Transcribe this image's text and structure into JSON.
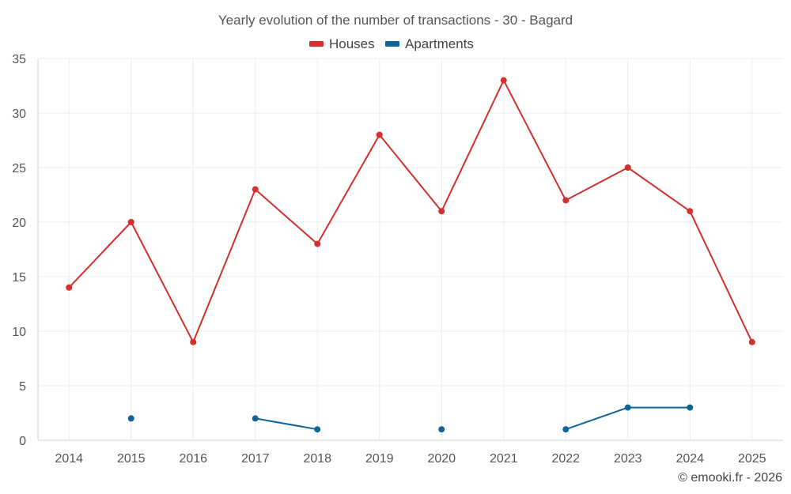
{
  "chart_data": {
    "type": "line",
    "title": "Yearly evolution of the number of transactions - 30 - Bagard",
    "categories": [
      "2014",
      "2015",
      "2016",
      "2017",
      "2018",
      "2019",
      "2020",
      "2021",
      "2022",
      "2023",
      "2024",
      "2025"
    ],
    "series": [
      {
        "name": "Houses",
        "color": "#d32f2f",
        "values": [
          14,
          20,
          9,
          23,
          18,
          28,
          21,
          33,
          22,
          25,
          21,
          9
        ]
      },
      {
        "name": "Apartments",
        "color": "#0e6596",
        "values": [
          null,
          2,
          null,
          2,
          1,
          null,
          1,
          null,
          1,
          3,
          3,
          null
        ]
      }
    ],
    "ylim": [
      0,
      35
    ],
    "yticks": [
      0,
      5,
      10,
      15,
      20,
      25,
      30,
      35
    ],
    "grid": true,
    "legend": "top-center",
    "xlabel": "",
    "ylabel": ""
  },
  "credit": "© emooki.fr - 2026"
}
